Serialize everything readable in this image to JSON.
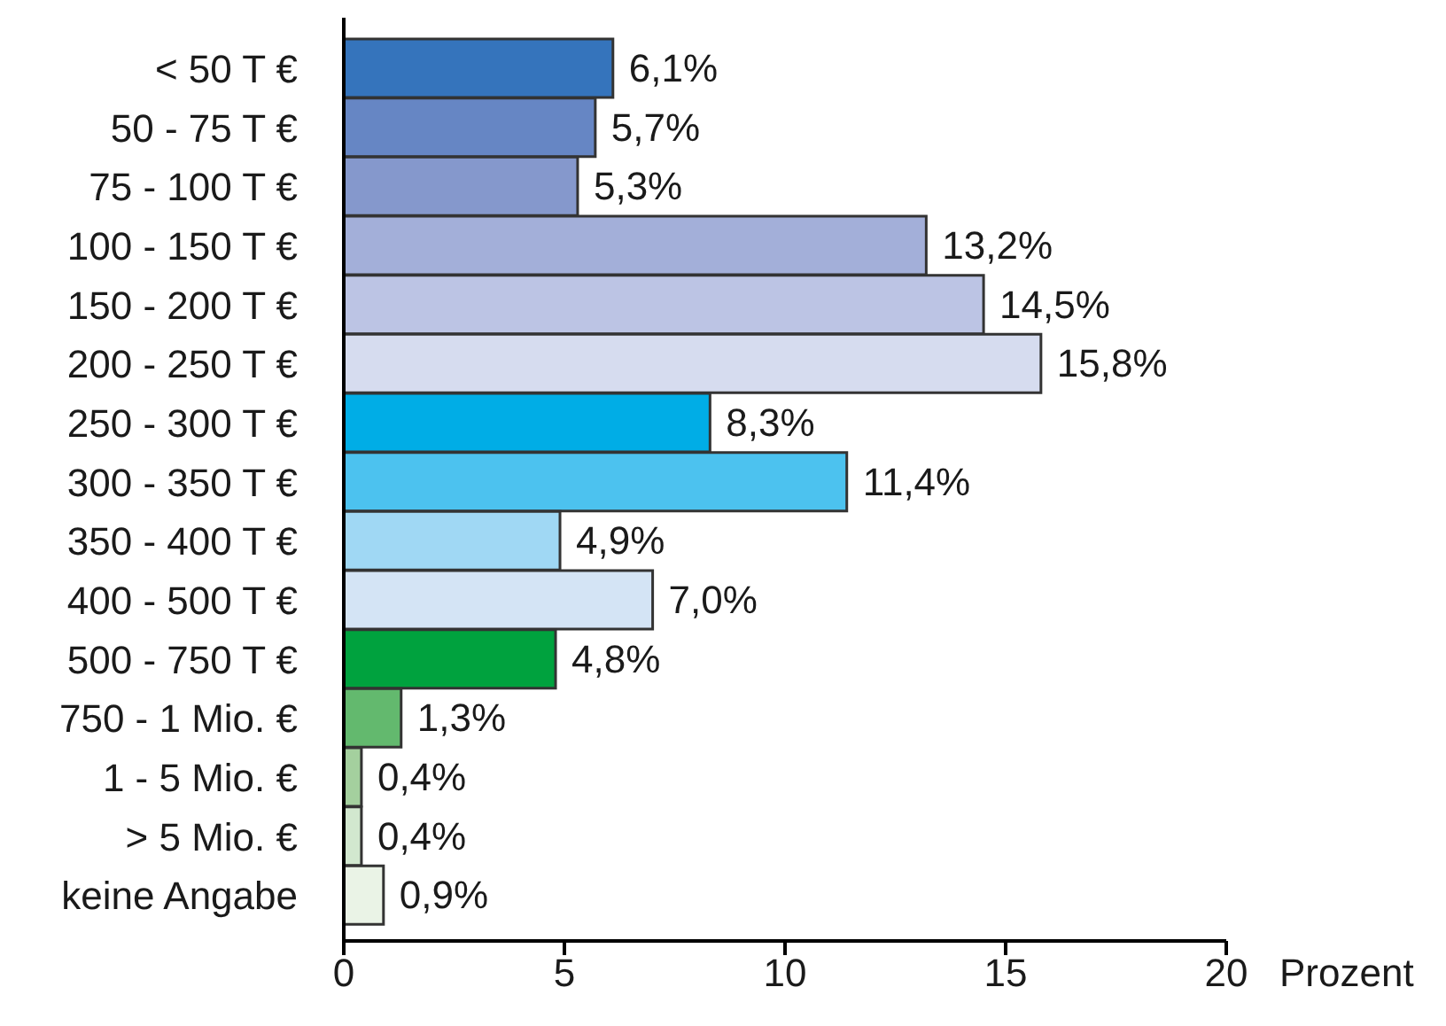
{
  "chart_data": {
    "type": "bar",
    "orientation": "horizontal",
    "xlabel": "Prozent",
    "categories": [
      "< 50 T €",
      "50 - 75 T €",
      "75 - 100 T €",
      "100 - 150 T €",
      "150 - 200 T €",
      "200 - 250 T €",
      "250 - 300 T €",
      "300 - 350 T €",
      "350 - 400 T €",
      "400 - 500 T €",
      "500 - 750 T €",
      "750 - 1 Mio. €",
      "1 - 5 Mio. €",
      "> 5 Mio. €",
      "keine Angabe"
    ],
    "values": [
      6.1,
      5.7,
      5.3,
      13.2,
      14.5,
      15.8,
      8.3,
      11.4,
      4.9,
      7.0,
      4.8,
      1.3,
      0.4,
      0.4,
      0.9
    ],
    "colors": [
      "#3574bc",
      "#6686c4",
      "#8598cc",
      "#a3afd9",
      "#bcc4e4",
      "#d6dcef",
      "#00ade6",
      "#4cc2ef",
      "#a0d8f4",
      "#d4e4f5",
      "#00a23e",
      "#63b96e",
      "#a4d09e",
      "#d2e8cf",
      "#eaf3e6"
    ],
    "value_labels": [
      "6,1%",
      "5,7%",
      "5,3%",
      "13,2%",
      "14,5%",
      "15,8%",
      "8,3%",
      "11,4%",
      "4,9%",
      "7,0%",
      "4,8%",
      "1,3%",
      "0,4%",
      "0,4%",
      "0,9%"
    ],
    "xlim": [
      0,
      20
    ],
    "xticks": [
      0,
      5,
      10,
      15,
      20
    ]
  }
}
